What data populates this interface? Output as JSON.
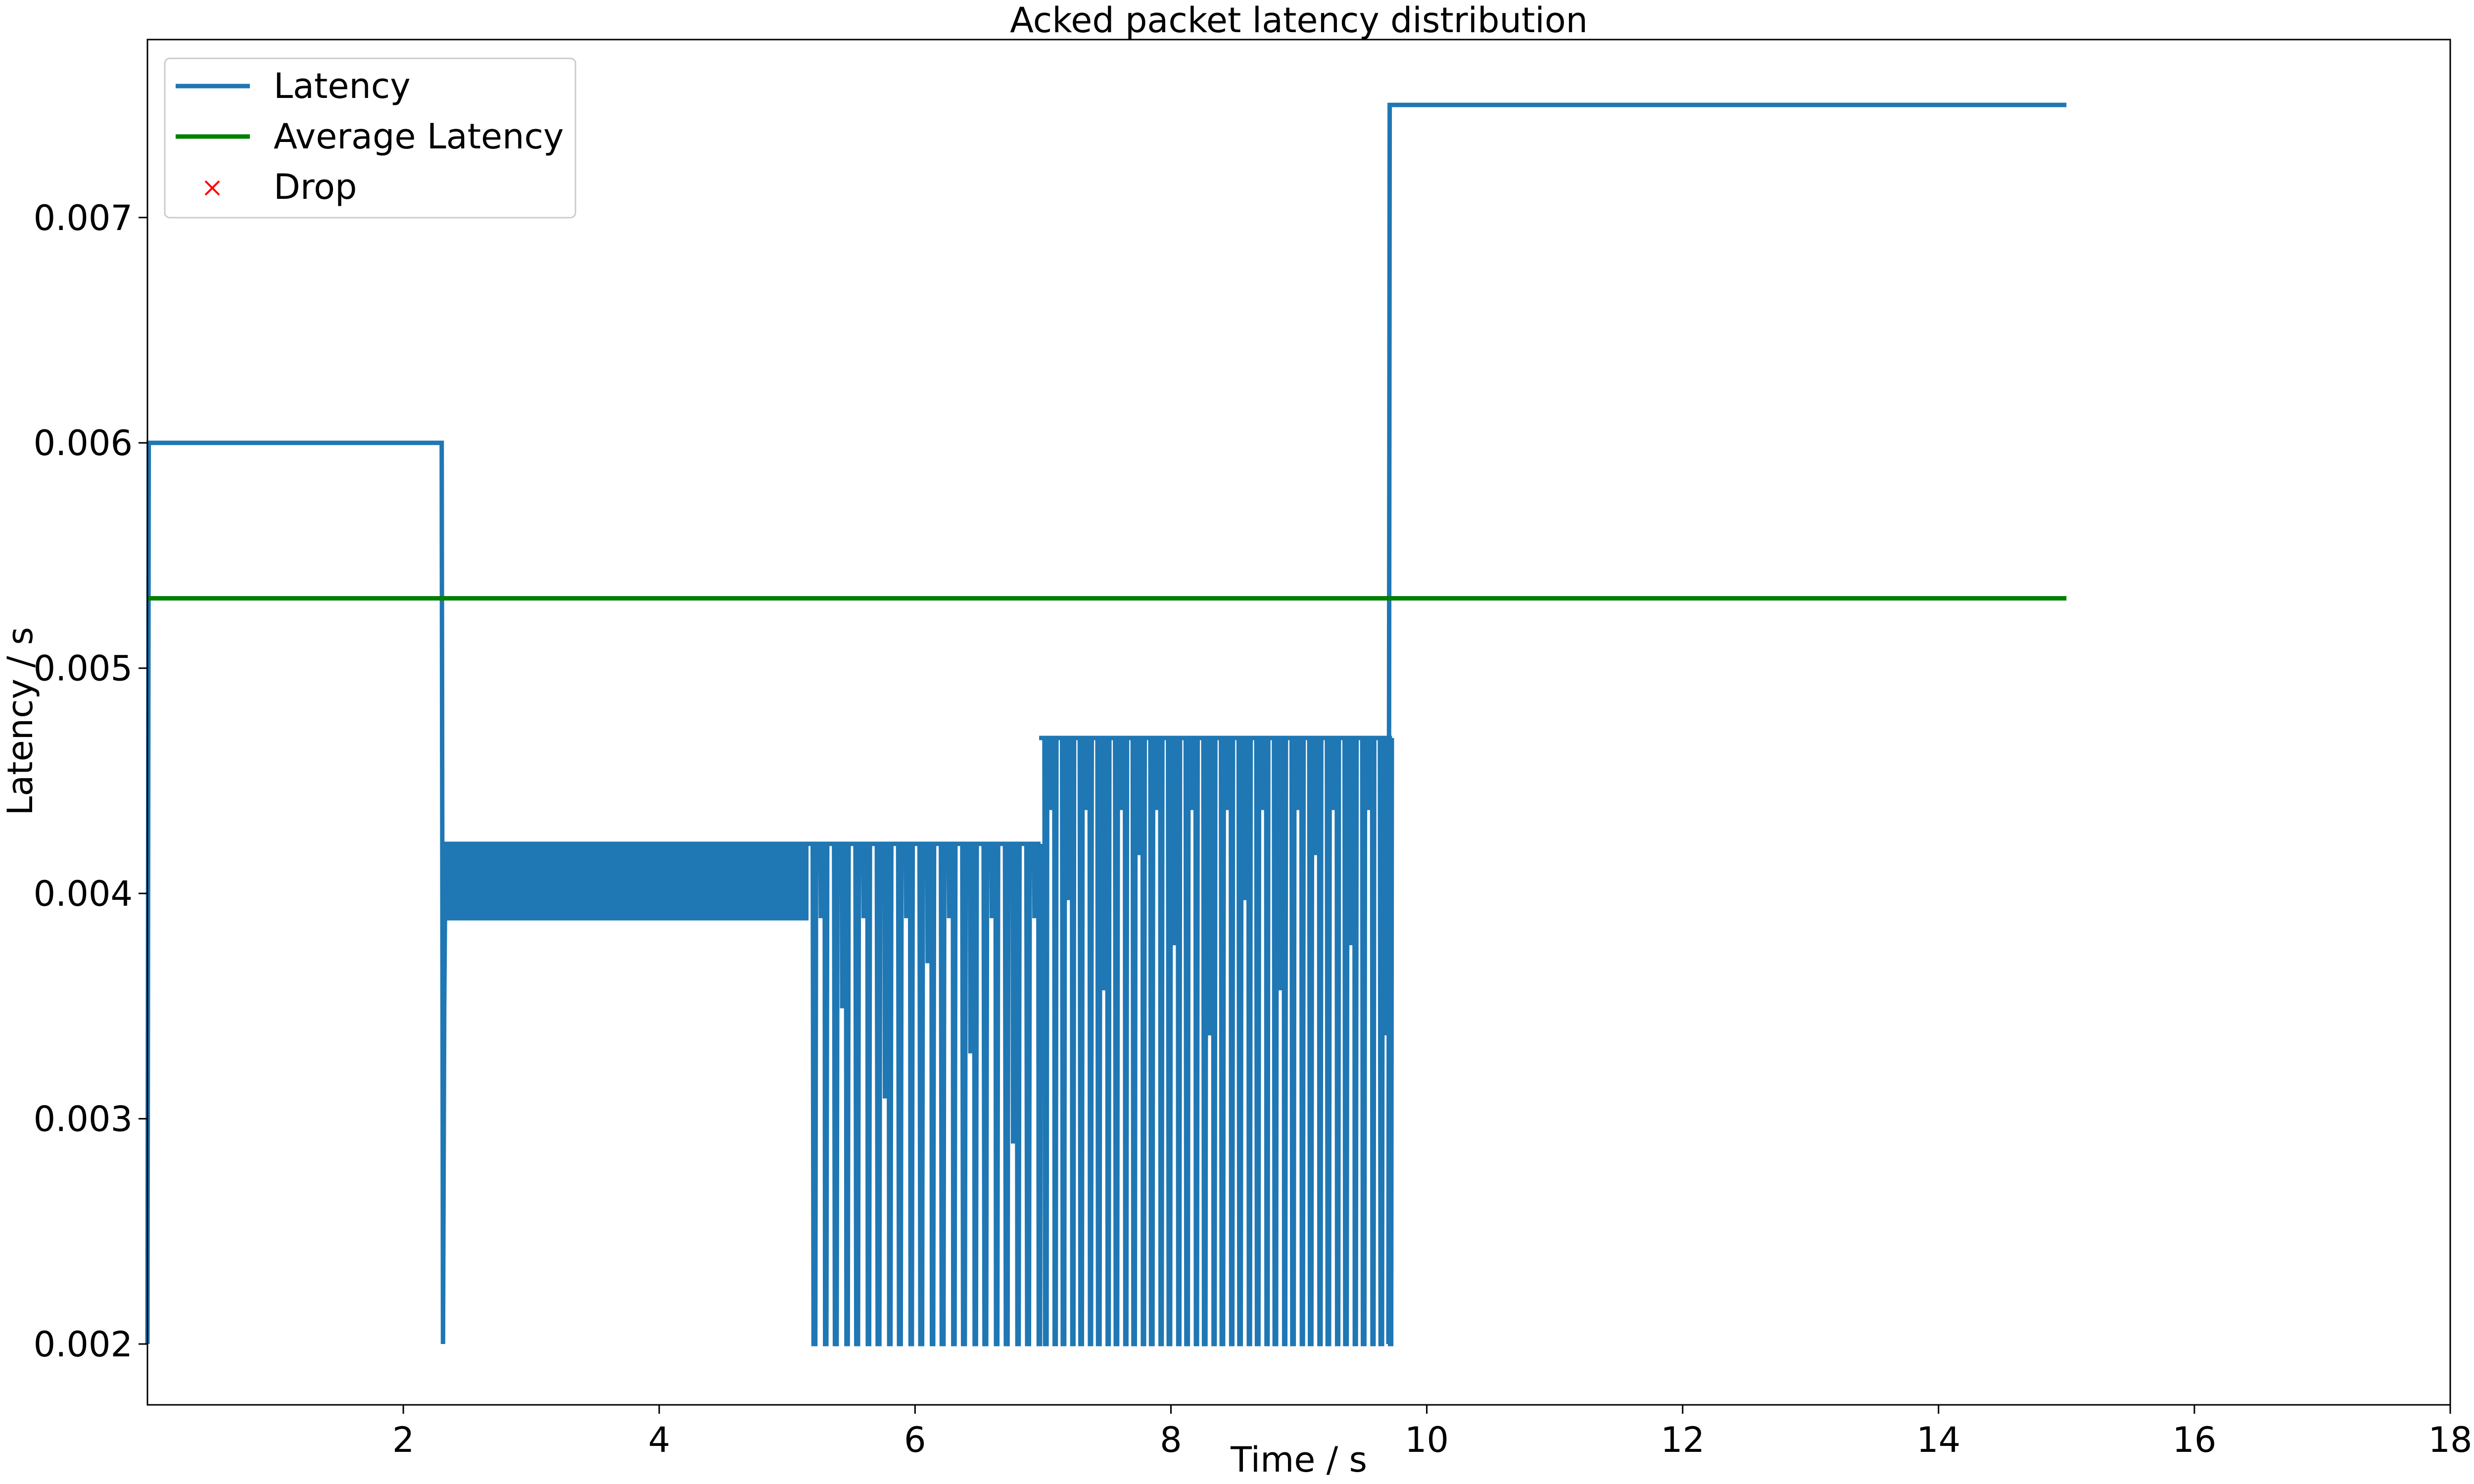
{
  "chart_data": {
    "type": "line",
    "title": "Acked packet latency distribution",
    "xlabel": "Time / s",
    "ylabel": "Latency / s",
    "xlim": [
      0,
      18
    ],
    "ylim": [
      0.00173,
      0.00779
    ],
    "xticks": [
      2,
      4,
      6,
      8,
      10,
      12,
      14,
      16,
      18
    ],
    "xtick_labels": [
      "2",
      "4",
      "6",
      "8",
      "10",
      "12",
      "14",
      "16",
      "18"
    ],
    "yticks": [
      0.002,
      0.003,
      0.004,
      0.005,
      0.006,
      0.007
    ],
    "ytick_labels": [
      "0.002",
      "0.003",
      "0.004",
      "0.005",
      "0.006",
      "0.007"
    ],
    "grid": false,
    "legend_position": "top-left",
    "series": [
      {
        "name": "Latency",
        "color": "#1f77b4",
        "segments": [
          {
            "x": [
              0.0,
              0.01,
              0.02,
              2.3,
              2.31,
              2.32,
              2.33
            ],
            "y": [
              0.002,
              0.006,
              0.006,
              0.006,
              0.002,
              0.0035,
              0.0042
            ]
          },
          {
            "type": "band",
            "x0": 2.33,
            "x1": 5.15,
            "y0": 0.00389,
            "y1": 0.00422
          },
          {
            "type": "oscillation",
            "x0": 5.15,
            "x1": 6.97,
            "period": 0.167,
            "high": 0.00422,
            "mid": 0.00389,
            "low": 0.002
          },
          {
            "type": "oscillation",
            "x0": 6.97,
            "x1": 9.7,
            "period": 0.138,
            "high": 0.00469,
            "mid": 0.00437,
            "low": 0.002
          },
          {
            "x": [
              9.7,
              9.71,
              15.0
            ],
            "y": [
              0.002,
              0.0075,
              0.0075
            ]
          }
        ]
      },
      {
        "name": "Average Latency",
        "color": "#008000",
        "x": [
          0,
          15
        ],
        "y": [
          0.00531,
          0.00531
        ]
      },
      {
        "name": "Drop",
        "color": "#ff0000",
        "marker": "x",
        "x": [],
        "y": []
      }
    ]
  }
}
